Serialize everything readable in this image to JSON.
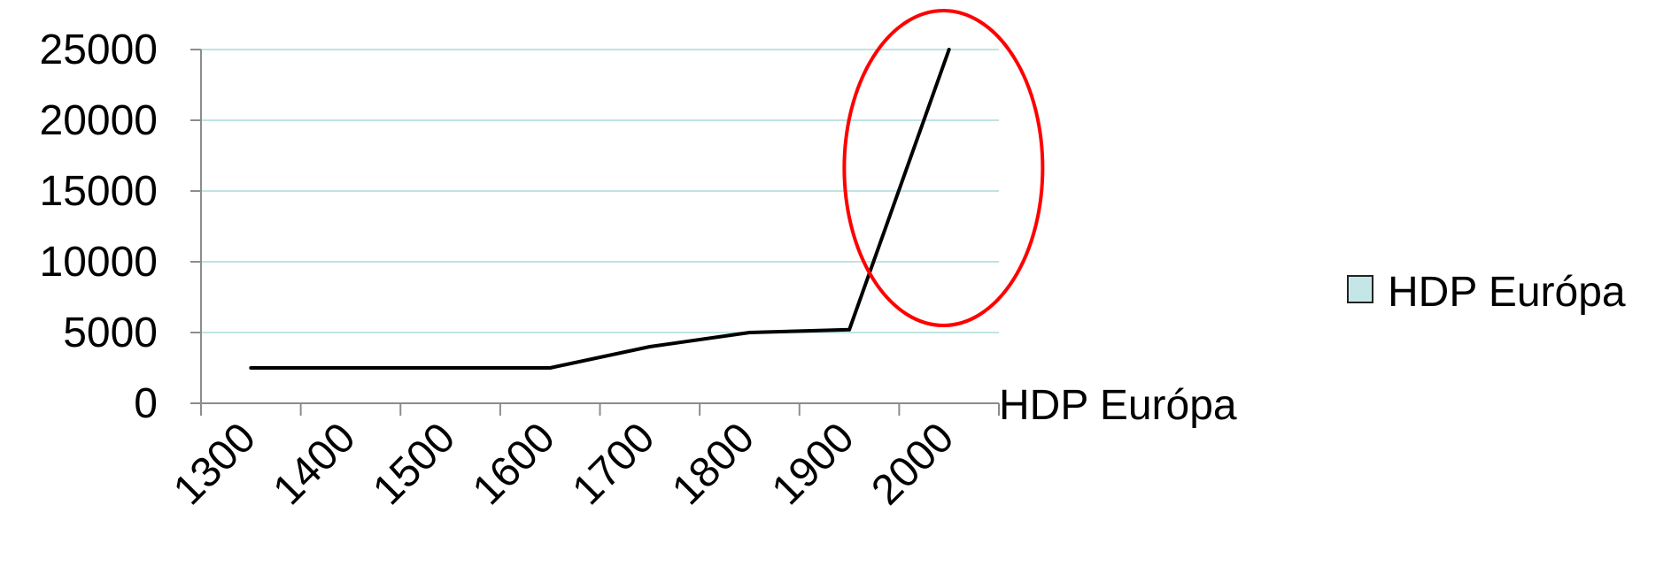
{
  "chart_data": {
    "type": "line",
    "title": "",
    "xlabel": "HDP Európa",
    "ylabel": "",
    "categories": [
      "1300",
      "1400",
      "1500",
      "1600",
      "1700",
      "1800",
      "1900",
      "2000"
    ],
    "series": [
      {
        "name": "HDP Európa",
        "values": [
          2500,
          2500,
          2500,
          2500,
          4000,
          5000,
          5200,
          25000
        ]
      }
    ],
    "yticks": [
      "0",
      "5000",
      "10000",
      "15000",
      "20000",
      "25000"
    ],
    "ylim": [
      0,
      25000
    ],
    "grid": true,
    "legend": {
      "position": "right",
      "label": "HDP Európa"
    },
    "annotation": "red ellipse highlighting the steep rise between 1900 and 2000",
    "colors": {
      "line": "#000000",
      "grid": "#bfe3e3",
      "axis": "#8c8c8c",
      "ellipse": "#ff0000",
      "legend_swatch": "#c5e6e6"
    }
  }
}
